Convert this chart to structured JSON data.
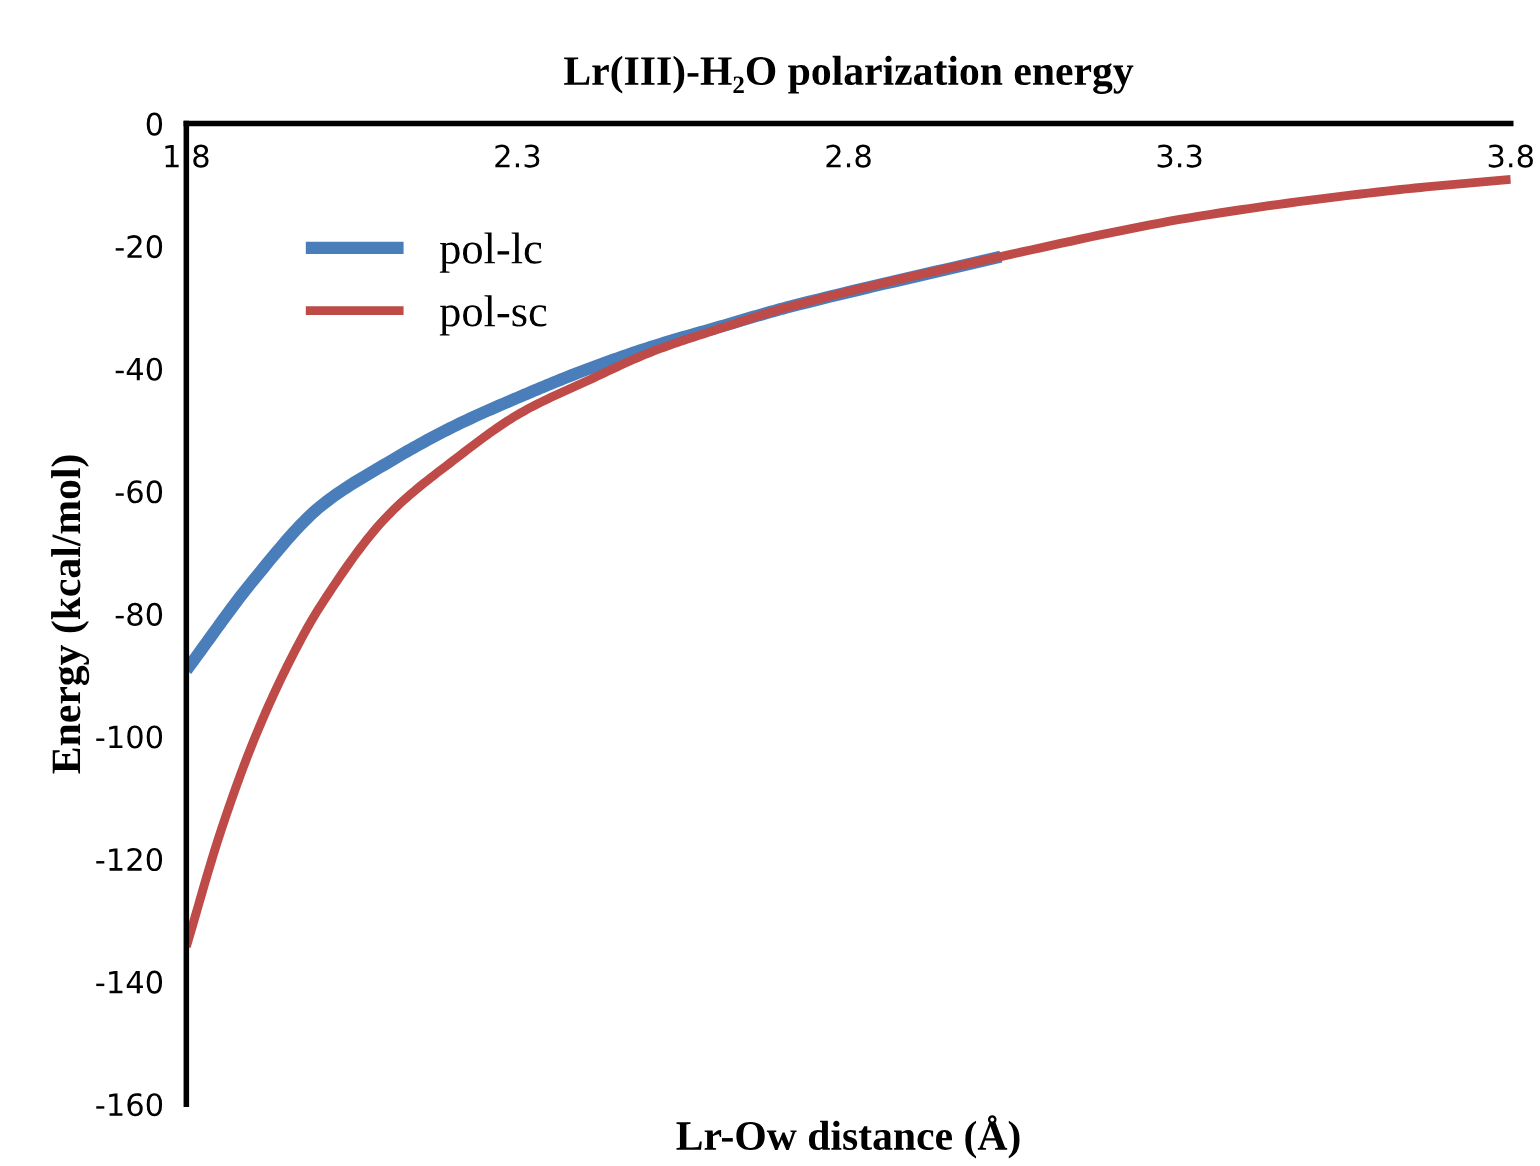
{
  "chart_data": {
    "type": "line",
    "title": "Lr(III)-H₂O polarization energy",
    "xlabel": "Lr-Ow distance (Å)",
    "ylabel": "Energy (kcal/mol)",
    "xlim": [
      1.8,
      3.8
    ],
    "xticks": [
      1.8,
      2.3,
      2.8,
      3.3,
      3.8
    ],
    "ylim": [
      -160,
      0
    ],
    "yticks": [
      0,
      -20,
      -40,
      -60,
      -80,
      -100,
      -120,
      -140,
      -160
    ],
    "legend": "top left",
    "grid": false,
    "marker": "none",
    "line_style": "solid",
    "series": [
      {
        "name": "pol-lc",
        "color": "#4a7ebb",
        "x": [
          1.8,
          1.902,
          2.002,
          2.103,
          2.204,
          2.305,
          2.405,
          2.506,
          2.607,
          2.707,
          3.03
        ],
        "values": [
          -89.2,
          -74.4,
          -62.5,
          -55.4,
          -49.4,
          -44.5,
          -40.1,
          -36.3,
          -33.1,
          -30.0,
          -21.7
        ]
      },
      {
        "name": "pol-sc",
        "color": "#be4b48",
        "x": [
          1.8,
          1.851,
          1.902,
          1.952,
          2.002,
          2.103,
          2.204,
          2.305,
          2.405,
          2.506,
          2.607,
          2.707,
          3.03,
          3.33,
          3.63,
          3.8
        ],
        "values": [
          -134.3,
          -115.8,
          -100.6,
          -88.6,
          -78.8,
          -64.1,
          -54.9,
          -47.2,
          -42.0,
          -37.1,
          -33.4,
          -30.0,
          -21.7,
          -15.1,
          -10.8,
          -9.1
        ]
      }
    ]
  }
}
